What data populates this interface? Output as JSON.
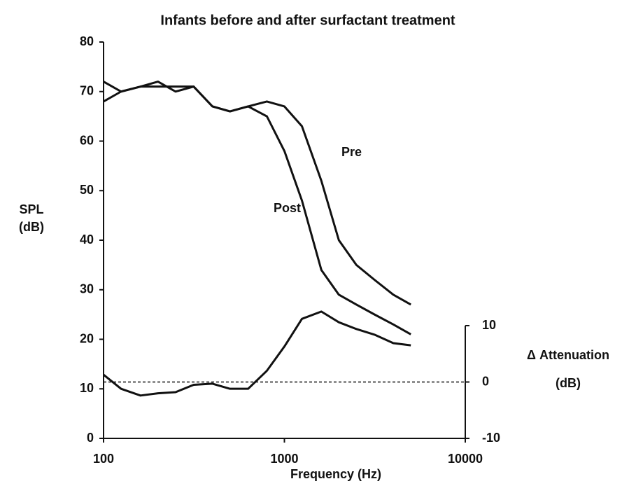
{
  "chart_data": {
    "type": "line",
    "title": "Infants before and after surfactant treatment",
    "xlabel": "Frequency (Hz)",
    "ylabel": [
      "SPL",
      "(dB)"
    ],
    "y2label": [
      "Δ Attenuation",
      "(dB)"
    ],
    "x": [
      100,
      125,
      160,
      200,
      250,
      315,
      400,
      500,
      630,
      800,
      1000,
      1250,
      1600,
      2000,
      2500,
      3150,
      4000,
      5000
    ],
    "xscale": "log",
    "xlim": [
      100,
      10000
    ],
    "xticks": [
      100,
      1000,
      10000
    ],
    "ylim": [
      0,
      80
    ],
    "yticks": [
      0,
      10,
      20,
      30,
      40,
      50,
      60,
      70,
      80
    ],
    "y2lim": [
      -10,
      10
    ],
    "y2ticks": [
      -10,
      0,
      10
    ],
    "series": [
      {
        "name": "Pre",
        "color": "#111111",
        "values": [
          68,
          70,
          71,
          71,
          71,
          71,
          67,
          66,
          67,
          68,
          67,
          63,
          52,
          40,
          35,
          32,
          29,
          27
        ]
      },
      {
        "name": "Post",
        "color": "#111111",
        "values": [
          72,
          70,
          71,
          72,
          70,
          71,
          67,
          66,
          67,
          65,
          58,
          48,
          34,
          29,
          27,
          25,
          23,
          21
        ]
      },
      {
        "name": "Δ Attenuation",
        "color": "#111111",
        "axis": "y2",
        "values": [
          1.3,
          -1.2,
          -2.4,
          -2,
          -1.8,
          -0.5,
          -0.3,
          -1.2,
          -1.2,
          2,
          6.3,
          11.2,
          12.5,
          10.6,
          9.4,
          8.4,
          6.9,
          6.5
        ]
      }
    ],
    "annotations": [
      "Pre",
      "Post"
    ]
  }
}
